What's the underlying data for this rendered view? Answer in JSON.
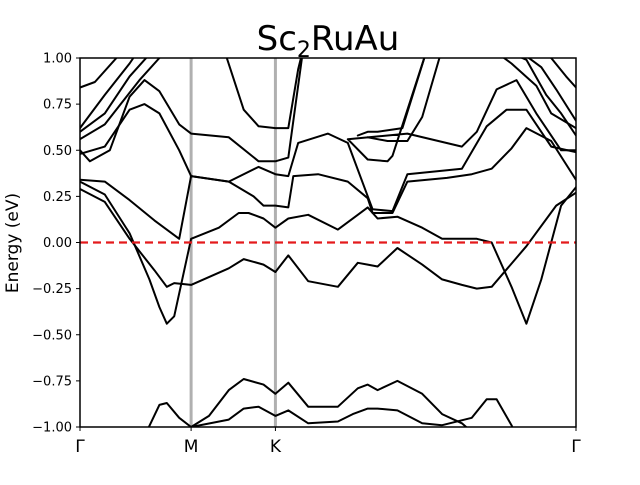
{
  "chart_data": {
    "type": "line",
    "title_main": "Sc",
    "title_sub": "2",
    "title_rest": "RuAu",
    "ylabel": "Energy (eV)",
    "xlabel": "",
    "ylim": [
      -1.0,
      1.0
    ],
    "xlim": [
      0,
      1
    ],
    "grid": false,
    "yticks": [
      -1.0,
      -0.75,
      -0.5,
      -0.25,
      0.0,
      0.25,
      0.5,
      0.75,
      1.0
    ],
    "ytick_labels": [
      "−1.00",
      "−0.75",
      "−0.50",
      "−0.25",
      "0.00",
      "0.25",
      "0.50",
      "0.75",
      "1.00"
    ],
    "kpoints": [
      {
        "label": "Γ",
        "x": 0.0
      },
      {
        "label": "M",
        "x": 0.224
      },
      {
        "label": "K",
        "x": 0.394
      },
      {
        "label": "Γ",
        "x": 1.0
      }
    ],
    "fermi_level": 0.0,
    "colors": {
      "bands": "#000000",
      "fermi": "#e41a1c",
      "kline": "#b0b0b0"
    },
    "series": [
      {
        "values": [
          [
            0.0,
            -1.05
          ],
          [
            0.13,
            -1.05
          ],
          [
            0.16,
            -0.88
          ],
          [
            0.175,
            -0.87
          ],
          [
            0.2,
            -0.95
          ],
          [
            0.224,
            -1.0
          ],
          [
            0.3,
            -0.96
          ],
          [
            0.33,
            -0.9
          ],
          [
            0.36,
            -0.89
          ],
          [
            0.394,
            -0.94
          ],
          [
            0.42,
            -0.91
          ],
          [
            0.46,
            -0.98
          ],
          [
            0.52,
            -0.97
          ],
          [
            0.55,
            -0.93
          ],
          [
            0.58,
            -0.9
          ],
          [
            0.6,
            -0.9
          ],
          [
            0.64,
            -0.91
          ],
          [
            0.69,
            -0.98
          ],
          [
            0.73,
            -0.99
          ],
          [
            0.79,
            -0.95
          ],
          [
            0.82,
            -0.85
          ],
          [
            0.84,
            -0.85
          ],
          [
            0.87,
            -0.99
          ],
          [
            0.88,
            -1.05
          ],
          [
            1.0,
            -1.05
          ]
        ]
      },
      {
        "values": [
          [
            0.224,
            -1.0
          ],
          [
            0.26,
            -0.94
          ],
          [
            0.3,
            -0.8
          ],
          [
            0.33,
            -0.74
          ],
          [
            0.37,
            -0.77
          ],
          [
            0.394,
            -0.82
          ],
          [
            0.42,
            -0.76
          ],
          [
            0.46,
            -0.89
          ],
          [
            0.52,
            -0.89
          ],
          [
            0.56,
            -0.79
          ],
          [
            0.58,
            -0.77
          ],
          [
            0.6,
            -0.8
          ],
          [
            0.64,
            -0.75
          ],
          [
            0.69,
            -0.82
          ],
          [
            0.73,
            -0.93
          ],
          [
            0.77,
            -0.98
          ],
          [
            0.8,
            -1.05
          ]
        ]
      },
      {
        "values": [
          [
            0.0,
            0.29
          ],
          [
            0.05,
            0.22
          ],
          [
            0.1,
            0.02
          ],
          [
            0.15,
            -0.15
          ],
          [
            0.175,
            -0.24
          ],
          [
            0.19,
            -0.22
          ],
          [
            0.224,
            -0.23
          ],
          [
            0.3,
            -0.14
          ],
          [
            0.33,
            -0.09
          ],
          [
            0.37,
            -0.12
          ],
          [
            0.394,
            -0.16
          ],
          [
            0.42,
            -0.07
          ],
          [
            0.46,
            -0.21
          ],
          [
            0.52,
            -0.24
          ],
          [
            0.56,
            -0.11
          ],
          [
            0.58,
            -0.12
          ],
          [
            0.6,
            -0.13
          ],
          [
            0.64,
            -0.03
          ],
          [
            0.69,
            -0.12
          ],
          [
            0.73,
            -0.2
          ],
          [
            0.77,
            -0.23
          ],
          [
            0.8,
            -0.25
          ],
          [
            0.83,
            -0.24
          ],
          [
            0.9,
            -0.02
          ],
          [
            0.96,
            0.2
          ],
          [
            1.0,
            0.27
          ]
        ]
      },
      {
        "values": [
          [
            0.0,
            0.33
          ],
          [
            0.05,
            0.26
          ],
          [
            0.1,
            0.05
          ],
          [
            0.14,
            -0.2
          ],
          [
            0.16,
            -0.35
          ],
          [
            0.175,
            -0.44
          ],
          [
            0.19,
            -0.4
          ],
          [
            0.224,
            0.02
          ],
          [
            0.28,
            0.08
          ],
          [
            0.32,
            0.16
          ],
          [
            0.34,
            0.16
          ],
          [
            0.37,
            0.13
          ],
          [
            0.394,
            0.08
          ],
          [
            0.42,
            0.13
          ],
          [
            0.46,
            0.15
          ],
          [
            0.52,
            0.07
          ],
          [
            0.56,
            0.15
          ],
          [
            0.58,
            0.19
          ],
          [
            0.6,
            0.13
          ],
          [
            0.64,
            0.14
          ],
          [
            0.69,
            0.08
          ],
          [
            0.73,
            0.02
          ],
          [
            0.77,
            0.02
          ],
          [
            0.8,
            0.02
          ],
          [
            0.83,
            0.0
          ],
          [
            0.87,
            -0.24
          ],
          [
            0.9,
            -0.44
          ],
          [
            0.93,
            -0.2
          ],
          [
            0.97,
            0.2
          ],
          [
            1.0,
            0.3
          ]
        ]
      },
      {
        "values": [
          [
            0.0,
            0.34
          ],
          [
            0.05,
            0.33
          ],
          [
            0.1,
            0.23
          ],
          [
            0.15,
            0.12
          ],
          [
            0.2,
            0.02
          ],
          [
            0.224,
            0.36
          ],
          [
            0.3,
            0.33
          ],
          [
            0.35,
            0.25
          ],
          [
            0.37,
            0.2
          ],
          [
            0.394,
            0.2
          ],
          [
            0.42,
            0.19
          ],
          [
            0.43,
            0.36
          ],
          [
            0.48,
            0.37
          ],
          [
            0.54,
            0.33
          ],
          [
            0.58,
            0.24
          ],
          [
            0.59,
            0.16
          ],
          [
            0.63,
            0.16
          ],
          [
            0.66,
            0.33
          ],
          [
            0.74,
            0.35
          ],
          [
            0.79,
            0.37
          ],
          [
            0.83,
            0.4
          ],
          [
            0.87,
            0.51
          ],
          [
            0.9,
            0.62
          ],
          [
            0.95,
            0.55
          ],
          [
            1.0,
            0.34
          ]
        ]
      },
      {
        "values": [
          [
            0.0,
            0.48
          ],
          [
            0.05,
            0.52
          ],
          [
            0.1,
            0.72
          ],
          [
            0.13,
            0.75
          ],
          [
            0.16,
            0.7
          ],
          [
            0.2,
            0.5
          ],
          [
            0.224,
            0.36
          ],
          [
            0.3,
            0.33
          ],
          [
            0.36,
            0.41
          ],
          [
            0.394,
            0.37
          ],
          [
            0.42,
            0.36
          ],
          [
            0.44,
            0.54
          ],
          [
            0.5,
            0.59
          ],
          [
            0.54,
            0.54
          ],
          [
            0.59,
            0.18
          ],
          [
            0.63,
            0.17
          ],
          [
            0.66,
            0.37
          ],
          [
            0.77,
            0.4
          ],
          [
            0.82,
            0.63
          ],
          [
            0.86,
            0.72
          ],
          [
            0.9,
            0.72
          ],
          [
            0.95,
            0.52
          ],
          [
            1.0,
            0.49
          ]
        ]
      },
      {
        "values": [
          [
            0.0,
            0.5
          ],
          [
            0.02,
            0.44
          ],
          [
            0.06,
            0.5
          ],
          [
            0.1,
            0.79
          ],
          [
            0.13,
            0.88
          ],
          [
            0.16,
            0.82
          ],
          [
            0.2,
            0.64
          ],
          [
            0.224,
            0.59
          ],
          [
            0.3,
            0.57
          ],
          [
            0.36,
            0.44
          ],
          [
            0.394,
            0.44
          ],
          [
            0.42,
            0.46
          ],
          [
            0.45,
            1.05
          ],
          [
            0.7,
            1.05
          ],
          [
            0.63,
            0.47
          ],
          [
            0.62,
            0.44
          ],
          [
            0.58,
            0.45
          ],
          [
            0.54,
            0.56
          ],
          [
            0.66,
            0.59
          ],
          [
            0.77,
            0.52
          ],
          [
            0.8,
            0.6
          ],
          [
            0.84,
            0.83
          ],
          [
            0.88,
            0.88
          ],
          [
            0.92,
            0.7
          ],
          [
            0.97,
            0.5
          ],
          [
            1.0,
            0.5
          ]
        ]
      },
      {
        "values": [
          [
            0.0,
            0.6
          ],
          [
            0.05,
            0.7
          ],
          [
            0.1,
            0.9
          ],
          [
            0.15,
            1.05
          ]
        ]
      },
      {
        "values": [
          [
            0.0,
            0.56
          ],
          [
            0.05,
            0.64
          ],
          [
            0.12,
            0.88
          ],
          [
            0.16,
            1.0
          ],
          [
            0.17,
            1.05
          ]
        ]
      },
      {
        "values": [
          [
            0.0,
            0.62
          ],
          [
            0.05,
            0.8
          ],
          [
            0.1,
            0.97
          ],
          [
            0.12,
            1.05
          ]
        ]
      },
      {
        "values": [
          [
            0.0,
            0.84
          ],
          [
            0.03,
            0.87
          ],
          [
            0.08,
            1.02
          ],
          [
            0.1,
            1.05
          ]
        ]
      },
      {
        "values": [
          [
            0.29,
            1.05
          ],
          [
            0.33,
            0.72
          ],
          [
            0.36,
            0.63
          ],
          [
            0.394,
            0.62
          ],
          [
            0.42,
            0.62
          ],
          [
            0.44,
            0.94
          ],
          [
            0.45,
            1.05
          ]
        ]
      },
      {
        "values": [
          [
            0.7,
            1.05
          ],
          [
            0.65,
            0.62
          ],
          [
            0.6,
            0.6
          ],
          [
            0.58,
            0.6
          ],
          [
            0.56,
            0.58
          ]
        ]
      },
      {
        "values": [
          [
            0.73,
            1.05
          ],
          [
            0.69,
            0.68
          ],
          [
            0.66,
            0.55
          ],
          [
            0.62,
            0.55
          ],
          [
            0.58,
            0.57
          ]
        ]
      },
      {
        "values": [
          [
            0.83,
            1.05
          ],
          [
            0.87,
            0.97
          ],
          [
            0.92,
            0.85
          ],
          [
            0.95,
            0.7
          ],
          [
            1.0,
            0.62
          ]
        ]
      },
      {
        "values": [
          [
            0.85,
            1.05
          ],
          [
            0.9,
            0.99
          ],
          [
            0.94,
            0.8
          ],
          [
            0.97,
            0.7
          ],
          [
            1.0,
            0.58
          ]
        ]
      },
      {
        "values": [
          [
            0.88,
            1.05
          ],
          [
            0.93,
            0.95
          ],
          [
            0.96,
            0.83
          ],
          [
            1.0,
            0.66
          ]
        ]
      },
      {
        "values": [
          [
            0.91,
            1.05
          ],
          [
            0.95,
            1.0
          ],
          [
            0.98,
            0.9
          ],
          [
            1.0,
            0.84
          ]
        ]
      }
    ]
  }
}
